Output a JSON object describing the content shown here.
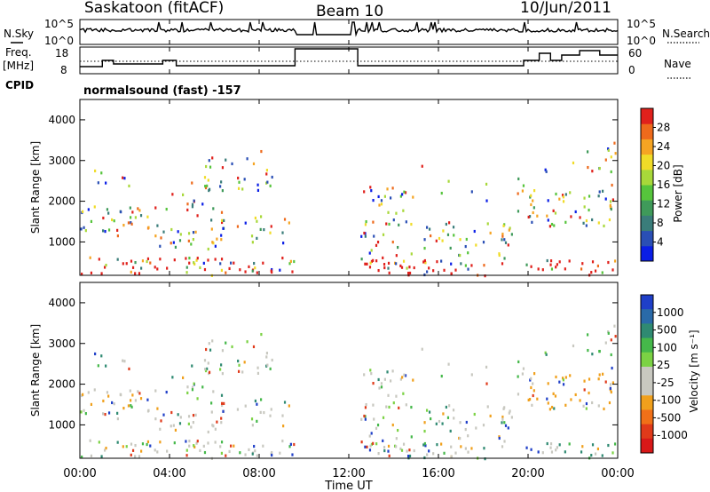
{
  "header": {
    "station": "Saskatoon (fitACF)",
    "beam": "Beam 10",
    "date": "10/Jun/2011"
  },
  "top_panel": {
    "left_label": "N.Sky",
    "right_label": "N.Search",
    "left_ticks": [
      "10^5",
      "10^0"
    ],
    "right_ticks": [
      "10^5",
      "10^0"
    ]
  },
  "freq_panel": {
    "left_label_1": "Freq.",
    "left_label_2": "[MHz]",
    "right_label": "Nave",
    "left_ticks": [
      "18",
      "8"
    ],
    "right_ticks": [
      "60",
      "0"
    ]
  },
  "cpid": {
    "label": "CPID",
    "text": "normalsound (fast) -157"
  },
  "x_axis": {
    "label": "Time UT",
    "ticks": [
      "00:00",
      "04:00",
      "08:00",
      "12:00",
      "16:00",
      "20:00",
      "00:00"
    ]
  },
  "chart_data": [
    {
      "type": "heatmap",
      "name": "power",
      "ylabel": "Slant Range [km]",
      "ylim": [
        180,
        4500
      ],
      "y_ticks": [
        "1000",
        "2000",
        "3000",
        "4000"
      ],
      "xlim_hours": [
        0,
        24
      ],
      "colorbar_label": "Power [dB]",
      "colorbar_ticks": [
        "4",
        "8",
        "12",
        "16",
        "20",
        "24",
        "28"
      ],
      "colorbar_colors": [
        "#0a1ee6",
        "#2a4fb5",
        "#3a7d7a",
        "#3f9a5a",
        "#56c43c",
        "#a8d83a",
        "#f0dc28",
        "#f5a423",
        "#ee6a1c",
        "#e0211c"
      ]
    },
    {
      "type": "heatmap",
      "name": "velocity",
      "ylabel": "Slant Range [km]",
      "ylim": [
        180,
        4500
      ],
      "y_ticks": [
        "1000",
        "2000",
        "3000",
        "4000"
      ],
      "xlim_hours": [
        0,
        24
      ],
      "colorbar_label": "Velocity [m s⁻¹]",
      "colorbar_ticks": [
        "1000",
        "500",
        "100",
        "25",
        "-25",
        "-100",
        "-500",
        "-1000"
      ],
      "colorbar_colors": [
        "#1f3fc8",
        "#2a6aa8",
        "#2f8a72",
        "#45b84a",
        "#7bd244",
        "#c8c8c0",
        "#c8c8c0",
        "#f0a01c",
        "#f07018",
        "#e03a1a",
        "#d81818"
      ]
    }
  ]
}
